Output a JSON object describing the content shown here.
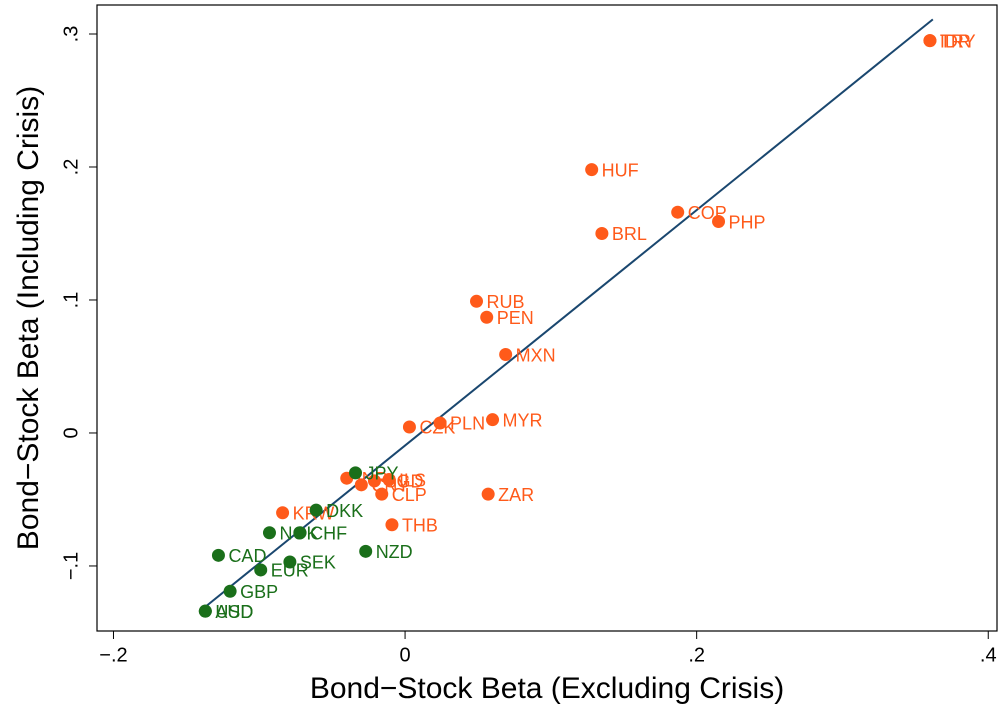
{
  "chart_data": {
    "type": "scatter",
    "xlabel": "Bond−Stock Beta (Excluding Crisis)",
    "ylabel": "Bond−Stock Beta (Including Crisis)",
    "xlim": [
      -0.2113,
      0.406
    ],
    "ylim": [
      -0.1489,
      0.3218
    ],
    "xticks": [
      {
        "value": -0.2,
        "label": "−.2"
      },
      0,
      {
        "value": 0.2,
        "label": ".2"
      },
      {
        "value": 0.4,
        "label": ".4"
      }
    ],
    "yticks": [
      {
        "value": -0.1,
        "label": "−.1"
      },
      0,
      {
        "value": 0.1,
        "label": ".1"
      },
      {
        "value": 0.2,
        "label": ".2"
      },
      {
        "value": 0.3,
        "label": ".3"
      }
    ],
    "fit_line": {
      "color": "#1a476f",
      "x": [
        -0.138,
        0.362
      ],
      "y": [
        -0.1316,
        0.311
      ]
    },
    "series": [
      {
        "color": "#ff5a1a",
        "points": [
          {
            "label": "IDR",
            "x": 0.36,
            "y": 0.295
          },
          {
            "label": "TRY",
            "x": 0.36,
            "y": 0.295
          },
          {
            "label": "HUF",
            "x": 0.128,
            "y": 0.198
          },
          {
            "label": "COP",
            "x": 0.187,
            "y": 0.166
          },
          {
            "label": "PHP",
            "x": 0.215,
            "y": 0.159
          },
          {
            "label": "BRL",
            "x": 0.135,
            "y": 0.15
          },
          {
            "label": "RUB",
            "x": 0.049,
            "y": 0.099
          },
          {
            "label": "PEN",
            "x": 0.056,
            "y": 0.087
          },
          {
            "label": "MXN",
            "x": 0.069,
            "y": 0.059
          },
          {
            "label": "MYR",
            "x": 0.06,
            "y": 0.01
          },
          {
            "label": "PLN",
            "x": 0.024,
            "y": 0.0075
          },
          {
            "label": "CZK",
            "x": 0.003,
            "y": 0.0045
          },
          {
            "label": "ZAR",
            "x": 0.057,
            "y": -0.046
          },
          {
            "label": "THB",
            "x": -0.009,
            "y": -0.069
          },
          {
            "label": "CLP",
            "x": -0.016,
            "y": -0.046
          },
          {
            "label": "INR",
            "x": -0.04,
            "y": -0.034
          },
          {
            "label": "CNY",
            "x": -0.03,
            "y": -0.039
          },
          {
            "label": "SGD",
            "x": -0.021,
            "y": -0.036
          },
          {
            "label": "ILS",
            "x": -0.011,
            "y": -0.035
          },
          {
            "label": "KRW",
            "x": -0.084,
            "y": -0.06
          }
        ]
      },
      {
        "color": "#1a6f1a",
        "points": [
          {
            "label": "JPY",
            "x": -0.034,
            "y": -0.03
          },
          {
            "label": "DKK",
            "x": -0.061,
            "y": -0.058
          },
          {
            "label": "NOK",
            "x": -0.093,
            "y": -0.075
          },
          {
            "label": "CHF",
            "x": -0.072,
            "y": -0.075
          },
          {
            "label": "NZD",
            "x": -0.027,
            "y": -0.089
          },
          {
            "label": "CAD",
            "x": -0.128,
            "y": -0.092
          },
          {
            "label": "SEK",
            "x": -0.079,
            "y": -0.097
          },
          {
            "label": "EUR",
            "x": -0.099,
            "y": -0.103
          },
          {
            "label": "GBP",
            "x": -0.12,
            "y": -0.119
          },
          {
            "label": "AUD",
            "x": -0.137,
            "y": -0.134
          },
          {
            "label": "USD",
            "x": -0.137,
            "y": -0.134
          }
        ]
      }
    ]
  }
}
